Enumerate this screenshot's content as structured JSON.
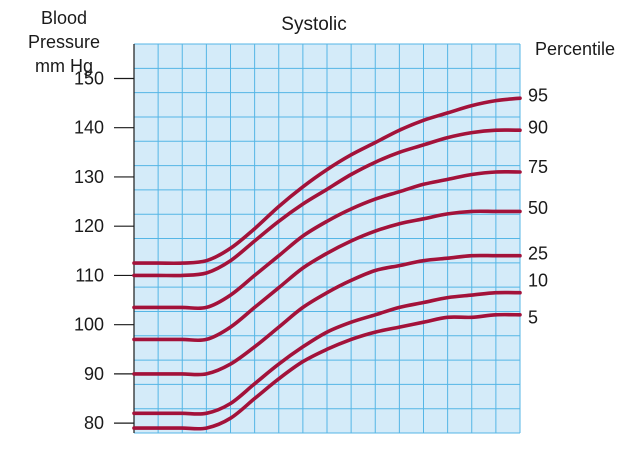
{
  "chart_data": {
    "type": "line",
    "title": "Systolic",
    "ylabel_lines": [
      "Blood",
      "Pressure",
      "mm Hg"
    ],
    "percentile_heading": "Percentile",
    "ylim": [
      78,
      157
    ],
    "y_ticks": [
      80,
      90,
      100,
      110,
      120,
      130,
      140,
      150
    ],
    "grid": true,
    "plot_background": "#d4ebf9",
    "grid_color": "#55b6e6",
    "series_color": "#a3123a",
    "x": [
      0,
      1,
      2,
      3,
      4,
      5,
      6,
      7,
      8,
      9,
      10,
      11,
      12,
      13,
      14,
      15,
      16
    ],
    "series": [
      {
        "name": "95",
        "values": [
          112.5,
          112.5,
          112.5,
          113.0,
          115.5,
          119.5,
          124.0,
          128.0,
          131.5,
          134.5,
          137.0,
          139.5,
          141.5,
          143.0,
          144.5,
          145.5,
          146.0
        ]
      },
      {
        "name": "90",
        "values": [
          110.0,
          110.0,
          110.0,
          110.5,
          113.0,
          117.0,
          121.0,
          124.5,
          127.5,
          130.5,
          133.0,
          135.0,
          136.5,
          138.0,
          139.0,
          139.5,
          139.5
        ]
      },
      {
        "name": "75",
        "values": [
          103.5,
          103.5,
          103.5,
          103.5,
          106.0,
          110.0,
          114.0,
          118.0,
          121.0,
          123.5,
          125.5,
          127.0,
          128.5,
          129.5,
          130.5,
          131.0,
          131.0
        ]
      },
      {
        "name": "50",
        "values": [
          97.0,
          97.0,
          97.0,
          97.0,
          99.5,
          103.5,
          107.5,
          111.5,
          114.5,
          117.0,
          119.0,
          120.5,
          121.5,
          122.5,
          123.0,
          123.0,
          123.0
        ]
      },
      {
        "name": "25",
        "values": [
          90.0,
          90.0,
          90.0,
          90.0,
          92.0,
          95.5,
          99.5,
          103.5,
          106.5,
          109.0,
          111.0,
          112.0,
          113.0,
          113.5,
          114.0,
          114.0,
          114.0
        ]
      },
      {
        "name": "10",
        "values": [
          82.0,
          82.0,
          82.0,
          82.0,
          84.0,
          88.0,
          92.0,
          95.5,
          98.5,
          100.5,
          102.0,
          103.5,
          104.5,
          105.5,
          106.0,
          106.5,
          106.5
        ]
      },
      {
        "name": "5",
        "values": [
          79.0,
          79.0,
          79.0,
          79.0,
          81.0,
          85.0,
          89.0,
          92.5,
          95.0,
          97.0,
          98.5,
          99.5,
          100.5,
          101.5,
          101.5,
          102.0,
          102.0
        ]
      }
    ],
    "percentile_labels": [
      {
        "text": "95",
        "y": 146.5
      },
      {
        "text": "90",
        "y": 140.0
      },
      {
        "text": "75",
        "y": 132.0
      },
      {
        "text": "50",
        "y": 123.7
      },
      {
        "text": "25",
        "y": 114.5
      },
      {
        "text": "10",
        "y": 109.0
      },
      {
        "text": "5",
        "y": 101.5
      }
    ]
  }
}
